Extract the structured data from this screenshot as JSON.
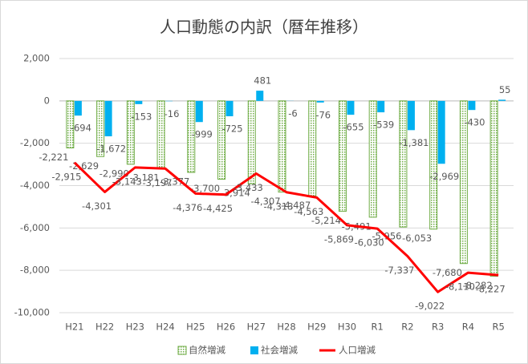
{
  "chart_data": {
    "type": "bar",
    "title": "人口動態の内訳（暦年推移）",
    "categories": [
      "H21",
      "H22",
      "H23",
      "H24",
      "H25",
      "H26",
      "H27",
      "H28",
      "H29",
      "H30",
      "R1",
      "R2",
      "R3",
      "R4",
      "R5"
    ],
    "series": [
      {
        "name": "自然増減",
        "color": "#70ad47",
        "type": "bar",
        "pattern": "dots",
        "values": [
          -2221,
          -2629,
          -2990,
          -3181,
          -3377,
          -3700,
          -3914,
          -4307,
          -4487,
          -5214,
          -5491,
          -5956,
          -6053,
          -7680,
          -8282
        ],
        "value_labels": [
          "-2,221",
          "-2,629",
          "-2,990",
          "-3,181",
          "-3,377",
          "-3,700",
          "-3,914",
          "-4,307",
          "-4,487",
          "-5,214",
          "-5,491",
          "-5,956",
          "-6,053",
          "-7,680",
          "-8,282"
        ]
      },
      {
        "name": "社会増減",
        "color": "#00b0f0",
        "type": "bar",
        "values": [
          -694,
          -1672,
          -153,
          -16,
          -999,
          -725,
          481,
          -6,
          -76,
          -655,
          -539,
          -1381,
          -2969,
          -430,
          55
        ],
        "value_labels": [
          "-694",
          "-1,672",
          "-153",
          "-16",
          "-999",
          "-725",
          "481",
          "-6",
          "-76",
          "-655",
          "-539",
          "-1,381",
          "-2,969",
          "-430",
          "55"
        ]
      },
      {
        "name": "人口増減",
        "color": "#ff0000",
        "type": "line",
        "values": [
          -2915,
          -4301,
          -3143,
          -3197,
          -4376,
          -4425,
          -3433,
          -4313,
          -4563,
          -5869,
          -6030,
          -7337,
          -9022,
          -8110,
          -8227
        ],
        "value_labels": [
          "-2,915",
          "-4,301",
          "-3,143",
          "-3,197",
          "-4,376",
          "-4,425",
          "-3,433",
          "-4,313",
          "-4,563",
          "-5,869",
          "-6,030",
          "-7,337",
          "-9,022",
          "-8,110",
          "-8,227"
        ]
      }
    ],
    "ylim": [
      -10000,
      2000
    ],
    "yticks": [
      {
        "value": 2000,
        "label": "2,000"
      },
      0,
      {
        "value": -2000,
        "label": "-2,000"
      },
      {
        "value": -4000,
        "label": "-4,000"
      },
      {
        "value": -6000,
        "label": "-6,000"
      },
      {
        "value": -8000,
        "label": "-8,000"
      },
      {
        "value": -10000,
        "label": "-10,000"
      }
    ],
    "grid": true,
    "legend": "bottom"
  }
}
